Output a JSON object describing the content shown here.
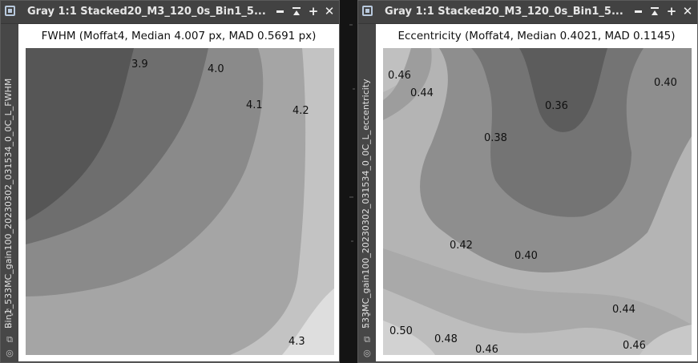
{
  "windows": [
    {
      "title": "Gray 1:1 Stacked20_M3_120_0s_Bin1_5...",
      "side_label": "Bin1_533MC_gain100_20230302_031534_0_0C_L_FWHM",
      "plot_title": "FWHM (Moffat4, Median 4.007 px, MAD 0.5691 px)",
      "contour_labels": [
        "3.9",
        "4.0",
        "4.1",
        "4.2",
        "4.3"
      ]
    },
    {
      "title": "Gray 1:1 Stacked20_M3_120_0s_Bin1_5...",
      "side_label": "533MC_gain100_20230302_031534_0_0C_L_eccentricity",
      "plot_title": "Eccentricity (Moffat4, Median 0.4021, MAD 0.1145)",
      "contour_labels": [
        "0.46",
        "0.44",
        "0.36",
        "0.40",
        "0.38",
        "0.42",
        "0.40",
        "0.44",
        "0.50",
        "0.48",
        "0.46",
        "0.46"
      ]
    }
  ],
  "window_buttons": {
    "minimize": "minimize",
    "shade": "shade",
    "maximize": "+",
    "close": "✕"
  },
  "side_icons": [
    "collapse-icon",
    "resize-icon",
    "clone-icon",
    "target-icon"
  ],
  "colors": {
    "titlebar": "#424242",
    "window_frame": "#474747",
    "plot_background": "#ffffff"
  }
}
